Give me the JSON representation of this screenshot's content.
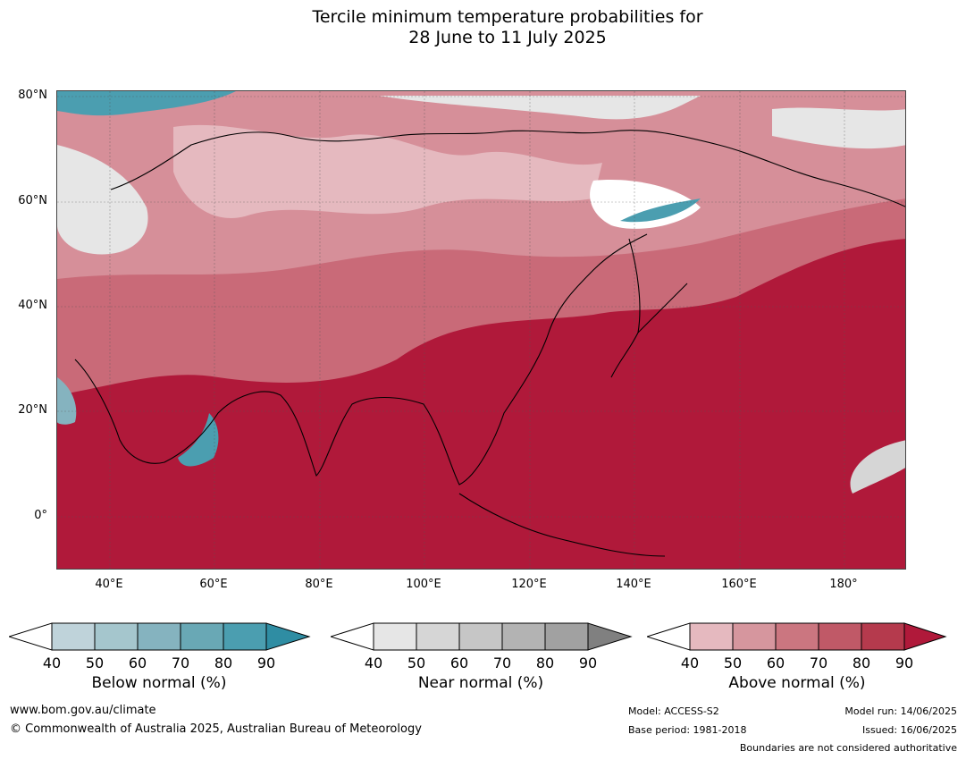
{
  "title": {
    "line1": "Tercile minimum temperature probabilities for",
    "line2": "28 June to 11 July 2025"
  },
  "map": {
    "lat_labels": [
      "80°N",
      "60°N",
      "40°N",
      "20°N",
      "0°"
    ],
    "lon_labels": [
      "40°E",
      "60°E",
      "80°E",
      "100°E",
      "120°E",
      "140°E",
      "160°E",
      "180°"
    ]
  },
  "colorbars": [
    {
      "title": "Below normal (%)",
      "ticks": [
        "40",
        "50",
        "60",
        "70",
        "80",
        "90"
      ],
      "colors": [
        "#bfd3da",
        "#a5c6cd",
        "#85b3bf",
        "#69a8b5",
        "#4b9eb0",
        "#2f8da3"
      ]
    },
    {
      "title": "Near normal (%)",
      "ticks": [
        "40",
        "50",
        "60",
        "70",
        "80",
        "90"
      ],
      "colors": [
        "#e6e6e6",
        "#d6d6d6",
        "#c6c6c6",
        "#b3b3b3",
        "#a1a1a1",
        "#808080"
      ]
    },
    {
      "title": "Above normal (%)",
      "ticks": [
        "40",
        "50",
        "60",
        "70",
        "80",
        "90"
      ],
      "colors": [
        "#e5b9bf",
        "#d6969e",
        "#cb7680",
        "#c05967",
        "#b53a4d",
        "#b0193a"
      ]
    }
  ],
  "footer": {
    "website": "www.bom.gov.au/climate",
    "copyright": "© Commonwealth of Australia 2025, Australian Bureau of Meteorology",
    "model": "Model: ACCESS-S2",
    "base_period": "Base period: 1981-2018",
    "model_run": "Model run: 14/06/2025",
    "issued": "Issued: 16/06/2025",
    "disclaimer": "Boundaries are not considered authoritative"
  }
}
